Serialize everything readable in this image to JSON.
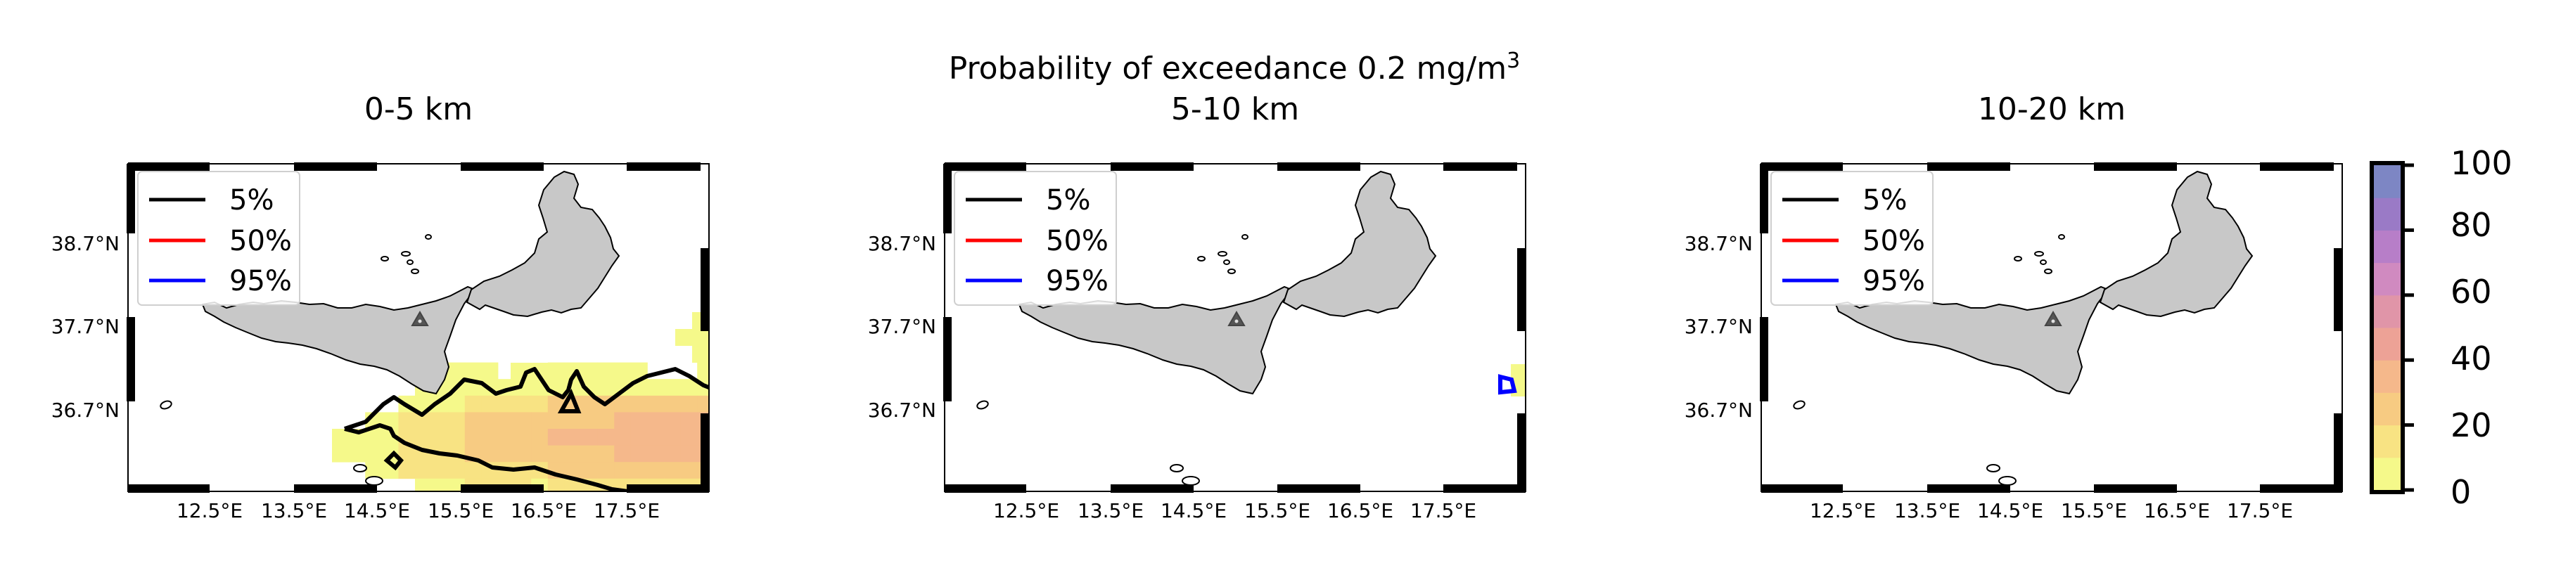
{
  "figure": {
    "title_main": "Probability of exceedance 0.2 mg/m",
    "title_sup": "3"
  },
  "panels": [
    {
      "title": "0-5 km"
    },
    {
      "title": "5-10 km"
    },
    {
      "title": "10-20 km"
    }
  ],
  "x_ticks": [
    "12.5°E",
    "13.5°E",
    "14.5°E",
    "15.5°E",
    "16.5°E",
    "17.5°E"
  ],
  "y_ticks": [
    "38.7°N",
    "37.7°N",
    "36.7°N"
  ],
  "legend": [
    {
      "label": "5%",
      "color": "#000000"
    },
    {
      "label": "50%",
      "color": "#ff0000"
    },
    {
      "label": "95%",
      "color": "#0000ff"
    }
  ],
  "colorbar": {
    "ticks": [
      "0",
      "20",
      "40",
      "60",
      "80",
      "100"
    ],
    "min": 0,
    "max": 100,
    "colors": [
      "#f5f98a",
      "#f8e383",
      "#f7cb82",
      "#f5b88b",
      "#eda296",
      "#e095a8",
      "#d08ac0",
      "#b77ec8",
      "#9a7ac6",
      "#7d86c4"
    ]
  },
  "map": {
    "land_color": "#c8c8c8",
    "volcano_marker": "triangle"
  }
}
